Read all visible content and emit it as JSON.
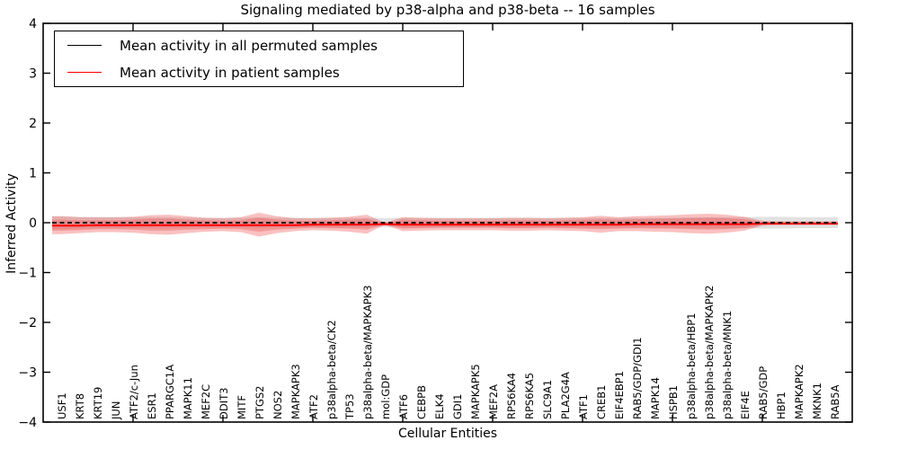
{
  "title": "Signaling mediated by p38-alpha and p38-beta -- 16 samples",
  "axes": {
    "xlabel": "Cellular Entities",
    "ylabel": "Inferred Activity",
    "ytick_labels": [
      "4",
      "3",
      "2",
      "1",
      "0",
      "−1",
      "−2",
      "−3",
      "−4"
    ]
  },
  "legend": {
    "items": [
      {
        "label": "Mean activity in all permuted samples",
        "color": "#000000"
      },
      {
        "label": "Mean activity in patient samples",
        "color": "#ff0000"
      }
    ]
  },
  "colors": {
    "patient_line": "#ff0000",
    "permuted_line": "#000000",
    "patient_band": "#ee3333",
    "permuted_band": "#a0a0a0",
    "frame": "#000000"
  },
  "chart_data": {
    "type": "line",
    "title": "Signaling mediated by p38-alpha and p38-beta -- 16 samples",
    "xlabel": "Cellular Entities",
    "ylabel": "Inferred Activity",
    "ylim": [
      -4,
      4
    ],
    "yticks": [
      4,
      3,
      2,
      1,
      0,
      -1,
      -2,
      -3,
      -4
    ],
    "grid": false,
    "legend_position": "upper left",
    "categories": [
      "USF1",
      "KRT8",
      "KRT19",
      "JUN",
      "ATF2/c-Jun",
      "ESR1",
      "PPARGC1A",
      "MAPK11",
      "MEF2C",
      "DDIT3",
      "MITF",
      "PTGS2",
      "NOS2",
      "MAPKAPK3",
      "ATF2",
      "p38alpha-beta/CK2",
      "TP53",
      "p38alpha-beta/MAPKAPK3",
      "mol:GDP",
      "ATF6",
      "CEBPB",
      "ELK4",
      "GDI1",
      "MAPKAPK5",
      "MEF2A",
      "RPS6KA4",
      "RPS6KA5",
      "SLC9A1",
      "PLA2G4A",
      "ATF1",
      "CREB1",
      "EIF4EBP1",
      "RAB5/GDP/GDI1",
      "MAPK14",
      "HSPB1",
      "p38alpha-beta/HBP1",
      "p38alpha-beta/MAPKAPK2",
      "p38alpha-beta/MNK1",
      "EIF4E",
      "RAB5/GDP",
      "HBP1",
      "MAPKAPK2",
      "MKNK1",
      "RAB5A"
    ],
    "series": [
      {
        "name": "Mean activity in all permuted samples",
        "values": [
          0,
          0,
          0,
          0,
          0,
          0,
          0,
          0,
          0,
          0,
          0,
          0,
          0,
          0,
          0,
          0,
          0,
          0,
          0,
          0,
          0,
          0,
          0,
          0,
          0,
          0,
          0,
          0,
          0,
          0,
          0,
          0,
          0,
          0,
          0,
          0,
          0,
          0,
          0,
          0,
          0,
          0,
          0,
          0
        ]
      },
      {
        "name": "Mean activity in patient samples",
        "values": [
          -0.05,
          -0.05,
          -0.04,
          -0.04,
          -0.04,
          -0.04,
          -0.04,
          -0.04,
          -0.04,
          -0.04,
          -0.04,
          -0.04,
          -0.04,
          -0.04,
          -0.03,
          -0.03,
          -0.03,
          -0.03,
          -0.02,
          -0.03,
          -0.03,
          -0.03,
          -0.03,
          -0.03,
          -0.03,
          -0.03,
          -0.03,
          -0.03,
          -0.03,
          -0.03,
          -0.03,
          -0.03,
          -0.02,
          -0.02,
          -0.02,
          -0.02,
          -0.02,
          -0.02,
          -0.02,
          -0.01,
          -0.01,
          -0.01,
          -0.01,
          -0.01
        ]
      }
    ],
    "bands": [
      {
        "name": "patient-outer-band",
        "center_series": 1,
        "half_widths": [
          0.18,
          0.16,
          0.15,
          0.15,
          0.16,
          0.19,
          0.2,
          0.17,
          0.14,
          0.13,
          0.15,
          0.24,
          0.17,
          0.13,
          0.12,
          0.13,
          0.15,
          0.19,
          0.02,
          0.14,
          0.13,
          0.12,
          0.12,
          0.12,
          0.12,
          0.13,
          0.13,
          0.12,
          0.13,
          0.14,
          0.17,
          0.14,
          0.15,
          0.16,
          0.17,
          0.19,
          0.2,
          0.18,
          0.14,
          0.05,
          0.04,
          0.04,
          0.04,
          0.04
        ]
      },
      {
        "name": "patient-inner-band",
        "center_series": 1,
        "half_widths": [
          0.11,
          0.1,
          0.09,
          0.09,
          0.1,
          0.12,
          0.12,
          0.1,
          0.09,
          0.08,
          0.09,
          0.14,
          0.1,
          0.08,
          0.07,
          0.08,
          0.09,
          0.11,
          0.01,
          0.09,
          0.08,
          0.07,
          0.07,
          0.07,
          0.07,
          0.08,
          0.08,
          0.07,
          0.08,
          0.09,
          0.1,
          0.09,
          0.09,
          0.1,
          0.1,
          0.11,
          0.12,
          0.11,
          0.09,
          0.03,
          0.02,
          0.02,
          0.02,
          0.02
        ]
      },
      {
        "name": "permuted-band",
        "center_series": 0,
        "half_widths": [
          0.13,
          0.12,
          0.11,
          0.11,
          0.11,
          0.11,
          0.11,
          0.1,
          0.1,
          0.1,
          0.1,
          0.11,
          0.1,
          0.1,
          0.1,
          0.1,
          0.1,
          0.1,
          0.09,
          0.1,
          0.1,
          0.1,
          0.1,
          0.1,
          0.1,
          0.1,
          0.1,
          0.1,
          0.1,
          0.1,
          0.1,
          0.1,
          0.1,
          0.1,
          0.1,
          0.11,
          0.11,
          0.11,
          0.11,
          0.12,
          0.12,
          0.11,
          0.11,
          0.11
        ]
      }
    ]
  }
}
